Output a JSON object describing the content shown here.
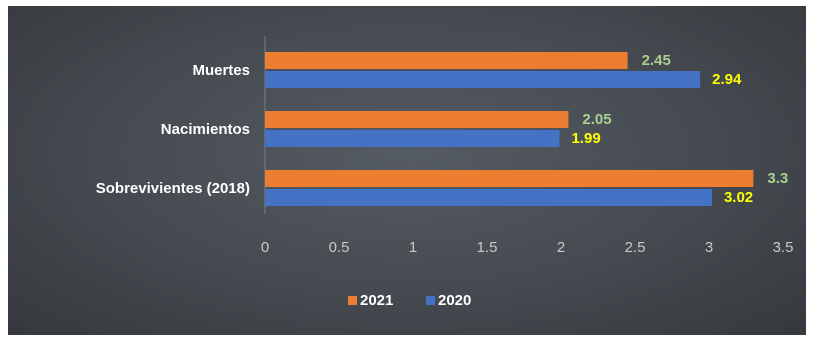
{
  "chart_data": {
    "type": "bar",
    "orientation": "horizontal",
    "title": "",
    "xlabel": "",
    "ylabel": "",
    "categories": [
      "Muertes",
      "Nacimientos",
      "Sobrevivientes (2018)"
    ],
    "series": [
      {
        "name": "2021",
        "values": [
          2.45,
          2.05,
          3.3
        ],
        "value_labels": [
          "2.45",
          "2.05",
          "3.3"
        ],
        "color": "#ed7d31",
        "label_color": "#a9d18e"
      },
      {
        "name": "2020",
        "values": [
          2.94,
          1.99,
          3.02
        ],
        "value_labels": [
          "2.94",
          "1.99",
          "3.02"
        ],
        "color": "#4472c4",
        "label_color": "#ffff00"
      }
    ],
    "xlim": [
      0,
      3.5
    ],
    "xticks": [
      0,
      0.5,
      1,
      1.5,
      2,
      2.5,
      3,
      3.5
    ],
    "xtick_labels": [
      "0",
      "0.5",
      "1",
      "1.5",
      "2",
      "2.5",
      "3",
      "3.5"
    ],
    "grid": false,
    "legend_position": "bottom",
    "background": "#4a4f55"
  }
}
